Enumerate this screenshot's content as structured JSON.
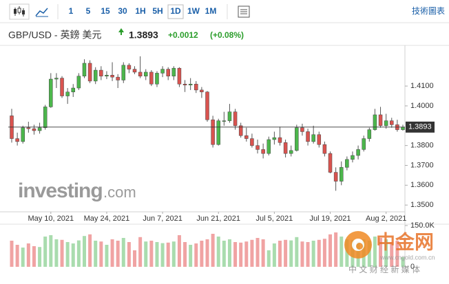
{
  "header": {
    "timeframes": [
      "1",
      "5",
      "15",
      "30",
      "1H",
      "5H",
      "1D",
      "1W",
      "1M"
    ],
    "tools_label": "技術圖表",
    "symbol": "GBP/USD - 英鎊 美元",
    "change": "+0.0012",
    "change_pct": "(+0.08%)"
  },
  "watermarks": {
    "brand": "investing",
    "brand_suffix": ".com",
    "logo": "中金网",
    "logo_url": "www.cngold.com.cn",
    "logo_tagline": "中 文 财 经 新 媒 体"
  },
  "chart_data": {
    "type": "candlestick",
    "categories": [
      null,
      null,
      null,
      null,
      null,
      null,
      null,
      "May 10, 2021",
      null,
      null,
      null,
      null,
      null,
      null,
      null,
      null,
      null,
      "May 24, 2021",
      null,
      null,
      null,
      null,
      null,
      null,
      null,
      null,
      null,
      "Jun 7, 2021",
      null,
      null,
      null,
      null,
      null,
      null,
      null,
      null,
      null,
      "Jun 21, 2021",
      null,
      null,
      null,
      null,
      null,
      null,
      null,
      null,
      null,
      "Jul 5, 2021",
      null,
      null,
      null,
      null,
      null,
      null,
      null,
      null,
      null,
      "Jul 19, 2021",
      null,
      null,
      null,
      null,
      null,
      null,
      null,
      null,
      null,
      "Aug 2, 2021",
      null,
      null,
      null
    ],
    "open": [
      1.395,
      1.3835,
      1.382,
      1.389,
      1.3885,
      1.3875,
      1.389,
      1.3995,
      1.4135,
      1.414,
      1.405,
      1.407,
      1.409,
      1.415,
      1.4215,
      1.4125,
      1.418,
      1.415,
      1.4155,
      1.4145,
      1.413,
      1.4205,
      1.4185,
      1.417,
      1.415,
      1.417,
      1.411,
      1.4165,
      1.4185,
      1.415,
      1.419,
      1.411,
      1.4105,
      1.411,
      1.408,
      1.407,
      1.393,
      1.3805,
      1.3925,
      1.3925,
      1.397,
      1.39,
      1.385,
      1.3835,
      1.38,
      1.378,
      1.376,
      1.383,
      1.384,
      1.3815,
      1.376,
      1.3775,
      1.389,
      1.387,
      1.382,
      1.3855,
      1.3805,
      1.376,
      1.3665,
      1.362,
      1.369,
      1.373,
      1.375,
      1.378,
      1.3835,
      1.388,
      1.3955,
      1.39,
      1.3925,
      1.3905,
      1.388
    ],
    "high": [
      1.3985,
      1.3865,
      1.39,
      1.392,
      1.3905,
      1.3915,
      1.4005,
      1.4165,
      1.4165,
      1.415,
      1.409,
      1.411,
      1.4165,
      1.4235,
      1.423,
      1.4195,
      1.42,
      1.4175,
      1.422,
      1.416,
      1.422,
      1.4215,
      1.42,
      1.425,
      1.4185,
      1.418,
      1.4175,
      1.42,
      1.4195,
      1.42,
      1.4195,
      1.413,
      1.414,
      1.4125,
      1.4095,
      1.4075,
      1.395,
      1.3935,
      1.397,
      1.401,
      1.3985,
      1.3915,
      1.389,
      1.386,
      1.383,
      1.381,
      1.3845,
      1.387,
      1.3895,
      1.383,
      1.38,
      1.3905,
      1.391,
      1.3885,
      1.39,
      1.387,
      1.382,
      1.377,
      1.369,
      1.372,
      1.3745,
      1.377,
      1.38,
      1.385,
      1.389,
      1.3985,
      1.3995,
      1.396,
      1.394,
      1.393,
      1.3905
    ],
    "low": [
      1.3815,
      1.38,
      1.381,
      1.3865,
      1.3855,
      1.386,
      1.388,
      1.399,
      1.409,
      1.404,
      1.401,
      1.4045,
      1.408,
      1.414,
      1.4115,
      1.411,
      1.413,
      1.4135,
      1.4125,
      1.409,
      1.4115,
      1.4165,
      1.416,
      1.414,
      1.413,
      1.41,
      1.4095,
      1.4145,
      1.413,
      1.413,
      1.4095,
      1.407,
      1.408,
      1.4065,
      1.404,
      1.392,
      1.379,
      1.38,
      1.39,
      1.3915,
      1.388,
      1.384,
      1.382,
      1.379,
      1.376,
      1.3735,
      1.375,
      1.3805,
      1.38,
      1.374,
      1.3745,
      1.377,
      1.385,
      1.38,
      1.381,
      1.379,
      1.3745,
      1.366,
      1.3572,
      1.36,
      1.3675,
      1.3715,
      1.373,
      1.377,
      1.382,
      1.3875,
      1.389,
      1.3885,
      1.389,
      1.387,
      1.3875
    ],
    "close": [
      1.3835,
      1.382,
      1.389,
      1.3885,
      1.3875,
      1.389,
      1.3995,
      1.4135,
      1.414,
      1.405,
      1.407,
      1.409,
      1.415,
      1.4215,
      1.4125,
      1.418,
      1.415,
      1.4155,
      1.4145,
      1.413,
      1.4205,
      1.4185,
      1.417,
      1.415,
      1.417,
      1.411,
      1.4165,
      1.4185,
      1.415,
      1.419,
      1.411,
      1.4105,
      1.411,
      1.408,
      1.407,
      1.393,
      1.3805,
      1.3925,
      1.3925,
      1.397,
      1.39,
      1.385,
      1.3835,
      1.38,
      1.378,
      1.376,
      1.383,
      1.384,
      1.3815,
      1.376,
      1.3775,
      1.389,
      1.387,
      1.382,
      1.3855,
      1.3805,
      1.376,
      1.3665,
      1.362,
      1.369,
      1.373,
      1.375,
      1.378,
      1.3835,
      1.388,
      1.3955,
      1.39,
      1.3925,
      1.3905,
      1.388,
      1.3893
    ],
    "volume": [
      95000,
      80000,
      70000,
      85000,
      75000,
      72000,
      110000,
      115000,
      100000,
      98000,
      90000,
      85000,
      96000,
      112000,
      118000,
      95000,
      92000,
      80000,
      100000,
      95000,
      105000,
      90000,
      60000,
      108000,
      92000,
      95000,
      90000,
      86000,
      88000,
      92000,
      115000,
      90000,
      80000,
      85000,
      95000,
      100000,
      120000,
      110000,
      95000,
      100000,
      90000,
      88000,
      92000,
      98000,
      105000,
      100000,
      60000,
      85000,
      95000,
      98000,
      96000,
      108000,
      92000,
      90000,
      95000,
      98000,
      102000,
      118000,
      125000,
      110000,
      100000,
      98000,
      92000,
      100000,
      95000,
      110000,
      105000,
      100000,
      90000,
      95000,
      35000
    ],
    "up_color": "#4cb64c",
    "down_color": "#d9534f",
    "up_volume_color": "#a9dcae",
    "down_volume_color": "#f0a3a3",
    "ylim": [
      1.3459,
      1.4305
    ],
    "yticks": [
      {
        "value": 1.35,
        "label": "1.3500"
      },
      {
        "value": 1.36,
        "label": "1.3600"
      },
      {
        "value": 1.37,
        "label": "1.3700"
      },
      {
        "value": 1.38,
        "label": "1.3800"
      },
      {
        "value": 1.4,
        "label": "1.4000"
      },
      {
        "value": 1.41,
        "label": "1.4100"
      }
    ],
    "volume_ylim": [
      0,
      165000
    ],
    "volume_yticks": [
      0,
      {
        "value": 150000,
        "label": "150.0K"
      }
    ],
    "current_price": 1.3893
  }
}
